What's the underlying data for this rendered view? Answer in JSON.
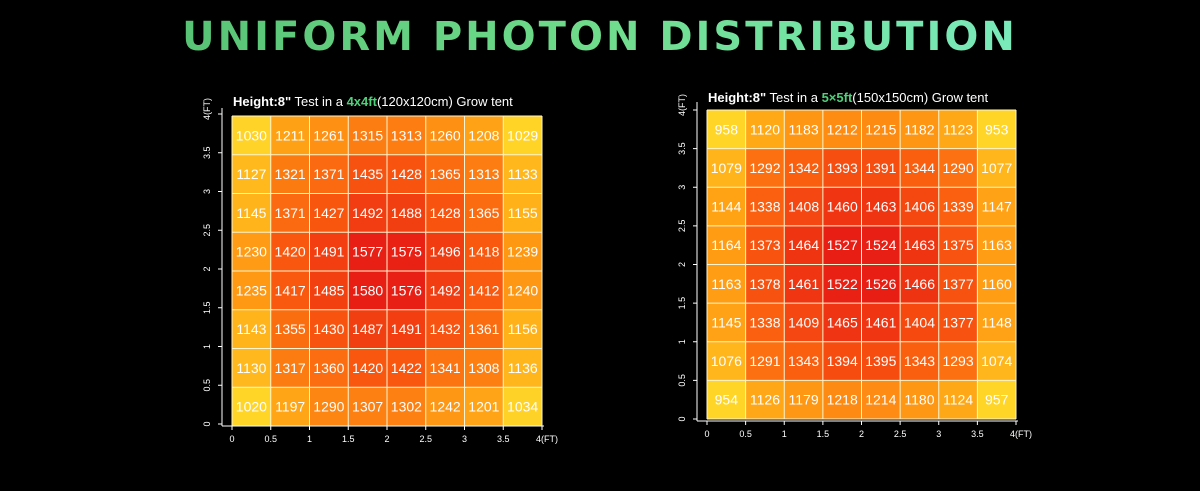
{
  "title": "UNIFORM PHOTON DISTRIBUTION",
  "chart_data": [
    {
      "type": "heatmap",
      "subtitle": {
        "height_label": "Height:8\"",
        "test_text": " Test in a ",
        "size_label": "4x4ft",
        "tail_text": "(120x120cm) Grow tent"
      },
      "x_ticks": [
        "0",
        "0.5",
        "1",
        "1.5",
        "2",
        "2.5",
        "3",
        "3.5",
        "4(FT)"
      ],
      "y_ticks": [
        "0",
        "0.5",
        "1",
        "1.5",
        "2",
        "2.5",
        "3",
        "3.5",
        "4(FT)"
      ],
      "xlim": [
        0,
        4
      ],
      "ylim": [
        0,
        4
      ],
      "grid": true,
      "values": [
        [
          1030,
          1211,
          1261,
          1315,
          1313,
          1260,
          1208,
          1029
        ],
        [
          1127,
          1321,
          1371,
          1435,
          1428,
          1365,
          1313,
          1133
        ],
        [
          1145,
          1371,
          1427,
          1492,
          1488,
          1428,
          1365,
          1155
        ],
        [
          1230,
          1420,
          1491,
          1577,
          1575,
          1496,
          1418,
          1239
        ],
        [
          1235,
          1417,
          1485,
          1580,
          1576,
          1492,
          1412,
          1240
        ],
        [
          1143,
          1355,
          1430,
          1487,
          1491,
          1432,
          1361,
          1156
        ],
        [
          1130,
          1317,
          1360,
          1420,
          1422,
          1341,
          1308,
          1136
        ],
        [
          1020,
          1197,
          1290,
          1307,
          1302,
          1242,
          1201,
          1034
        ]
      ]
    },
    {
      "type": "heatmap",
      "subtitle": {
        "height_label": "Height:8\"",
        "test_text": " Test in a ",
        "size_label": "5×5ft",
        "tail_text": "(150x150cm) Grow tent"
      },
      "x_ticks": [
        "0",
        "0.5",
        "1",
        "1.5",
        "2",
        "2.5",
        "3",
        "3.5",
        "4(FT)"
      ],
      "y_ticks": [
        "0",
        "0.5",
        "1",
        "1.5",
        "2",
        "2.5",
        "3",
        "3.5",
        "4(FT)"
      ],
      "xlim": [
        0,
        4
      ],
      "ylim": [
        0,
        4
      ],
      "grid": true,
      "values": [
        [
          958,
          1120,
          1183,
          1212,
          1215,
          1182,
          1123,
          953
        ],
        [
          1079,
          1292,
          1342,
          1393,
          1391,
          1344,
          1290,
          1077
        ],
        [
          1144,
          1338,
          1408,
          1460,
          1463,
          1406,
          1339,
          1147
        ],
        [
          1164,
          1373,
          1464,
          1527,
          1524,
          1463,
          1375,
          1163
        ],
        [
          1163,
          1378,
          1461,
          1522,
          1526,
          1466,
          1377,
          1160
        ],
        [
          1145,
          1338,
          1409,
          1465,
          1461,
          1404,
          1377,
          1148
        ],
        [
          1076,
          1291,
          1343,
          1394,
          1395,
          1343,
          1293,
          1074
        ],
        [
          954,
          1126,
          1179,
          1218,
          1214,
          1180,
          1124,
          957
        ]
      ]
    }
  ]
}
